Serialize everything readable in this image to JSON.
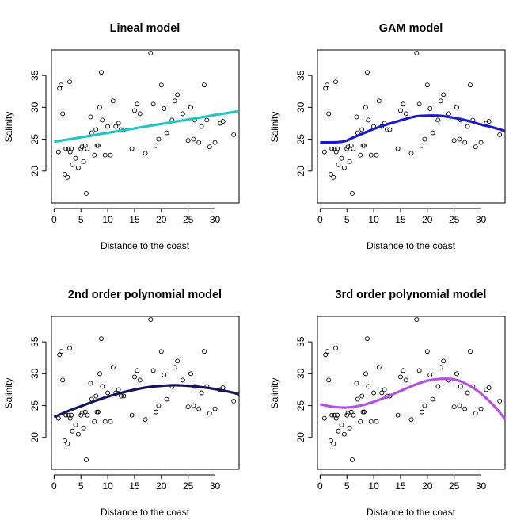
{
  "colors": {
    "lineal": "#22c4c4",
    "gam": "#1a1acd",
    "poly2": "#14145e",
    "poly3": "#b253e0"
  },
  "chart_data": [
    {
      "type": "scatter",
      "title": "Lineal model",
      "xlabel": "Distance to the coast",
      "ylabel": "Salinity",
      "xlim": [
        -0.5,
        34.5
      ],
      "ylim": [
        15,
        39
      ],
      "xticks": [
        0,
        5,
        10,
        15,
        20,
        25,
        30
      ],
      "yticks": [
        20,
        25,
        30,
        35
      ],
      "grid": false,
      "points_ref": "observations",
      "fit": {
        "name": "Lineal model",
        "color_key": "lineal",
        "x": [
          0,
          5,
          10,
          15,
          20,
          25,
          30,
          34.5
        ],
        "y": [
          24.6,
          25.3,
          26.0,
          26.7,
          27.4,
          28.1,
          28.8,
          29.4
        ]
      }
    },
    {
      "type": "scatter",
      "title": "GAM model",
      "xlabel": "Distance to the coast",
      "ylabel": "Salinity",
      "xlim": [
        -0.5,
        34.5
      ],
      "ylim": [
        15,
        39
      ],
      "xticks": [
        0,
        5,
        10,
        15,
        20,
        25,
        30
      ],
      "yticks": [
        20,
        25,
        30,
        35
      ],
      "grid": false,
      "points_ref": "observations",
      "fit": {
        "name": "GAM model",
        "color_key": "gam",
        "x": [
          0,
          2,
          4,
          5,
          6,
          8,
          10,
          12,
          14,
          16,
          18,
          20,
          22,
          24,
          26,
          28,
          30,
          32,
          34.5
        ],
        "y": [
          24.5,
          24.5,
          24.6,
          24.8,
          25.2,
          25.9,
          26.6,
          27.2,
          27.7,
          28.2,
          28.6,
          28.7,
          28.7,
          28.5,
          28.2,
          27.8,
          27.3,
          26.9,
          26.3
        ]
      }
    },
    {
      "type": "scatter",
      "title": "2nd order polynomial model",
      "xlabel": "Distance to the coast",
      "ylabel": "Salinity",
      "xlim": [
        -0.5,
        34.5
      ],
      "ylim": [
        15,
        39
      ],
      "xticks": [
        0,
        5,
        10,
        15,
        20,
        25,
        30
      ],
      "yticks": [
        20,
        25,
        30,
        35
      ],
      "grid": false,
      "points_ref": "observations",
      "fit": {
        "name": "2nd order polynomial model",
        "color_key": "poly2",
        "x": [
          0,
          2.5,
          5,
          7.5,
          10,
          12.5,
          15,
          17.5,
          20,
          22.5,
          25,
          27.5,
          30,
          32.5,
          34.5
        ],
        "y": [
          23.2,
          24.1,
          24.9,
          25.7,
          26.4,
          27.0,
          27.5,
          27.9,
          28.1,
          28.2,
          28.1,
          27.9,
          27.6,
          27.2,
          26.8
        ]
      }
    },
    {
      "type": "scatter",
      "title": "3rd order polynomial model",
      "xlabel": "Distance to the coast",
      "ylabel": "Salinity",
      "xlim": [
        -0.5,
        34.5
      ],
      "ylim": [
        15,
        39
      ],
      "xticks": [
        0,
        5,
        10,
        15,
        20,
        25,
        30
      ],
      "yticks": [
        20,
        25,
        30,
        35
      ],
      "grid": false,
      "points_ref": "observations",
      "fit": {
        "name": "3rd order polynomial model",
        "color_key": "poly3",
        "x": [
          0,
          2.5,
          5,
          7.5,
          10,
          12.5,
          15,
          17.5,
          20,
          22.5,
          25,
          27.5,
          30,
          32.5,
          34.5
        ],
        "y": [
          25.2,
          24.8,
          24.7,
          25.0,
          25.6,
          26.4,
          27.3,
          28.2,
          28.9,
          29.2,
          29.1,
          28.3,
          26.9,
          24.9,
          22.9
        ]
      }
    }
  ],
  "observations": {
    "x": [
      0.8,
      1.0,
      1.3,
      1.6,
      2.0,
      2.2,
      2.5,
      2.7,
      2.9,
      3.0,
      3.2,
      3.4,
      4.0,
      4.5,
      5.0,
      5.2,
      5.5,
      5.8,
      6.0,
      6.2,
      6.8,
      7.0,
      7.5,
      7.8,
      8.0,
      8.2,
      8.5,
      8.8,
      9.0,
      9.5,
      10.0,
      10.5,
      11.0,
      11.5,
      12.0,
      12.5,
      13.0,
      14.5,
      15.0,
      15.5,
      16.0,
      17.0,
      18.0,
      18.5,
      19.0,
      19.5,
      20.0,
      20.5,
      21.0,
      22.0,
      22.5,
      23.0,
      24.0,
      25.0,
      25.5,
      26.0,
      26.2,
      27.0,
      27.5,
      28.0,
      28.5,
      29.0,
      30.0,
      31.0,
      31.5,
      33.5
    ],
    "y": [
      23.0,
      33.0,
      33.5,
      29.0,
      19.5,
      23.5,
      19.0,
      23.5,
      34.0,
      23.0,
      23.5,
      21.0,
      22.0,
      20.5,
      23.5,
      23.8,
      21.5,
      24.0,
      16.5,
      23.5,
      28.5,
      26.0,
      22.5,
      26.5,
      24.0,
      24.0,
      30.0,
      35.5,
      28.0,
      22.5,
      27.0,
      22.5,
      31.0,
      27.0,
      27.5,
      26.5,
      26.5,
      23.5,
      29.5,
      30.5,
      29.0,
      22.8,
      38.5,
      30.5,
      24.0,
      25.0,
      33.5,
      29.8,
      26.0,
      28.0,
      31.0,
      32.0,
      29.0,
      24.8,
      30.0,
      25.0,
      28.0,
      24.5,
      27.0,
      33.5,
      28.0,
      23.8,
      24.5,
      27.5,
      27.8,
      25.7
    ]
  }
}
